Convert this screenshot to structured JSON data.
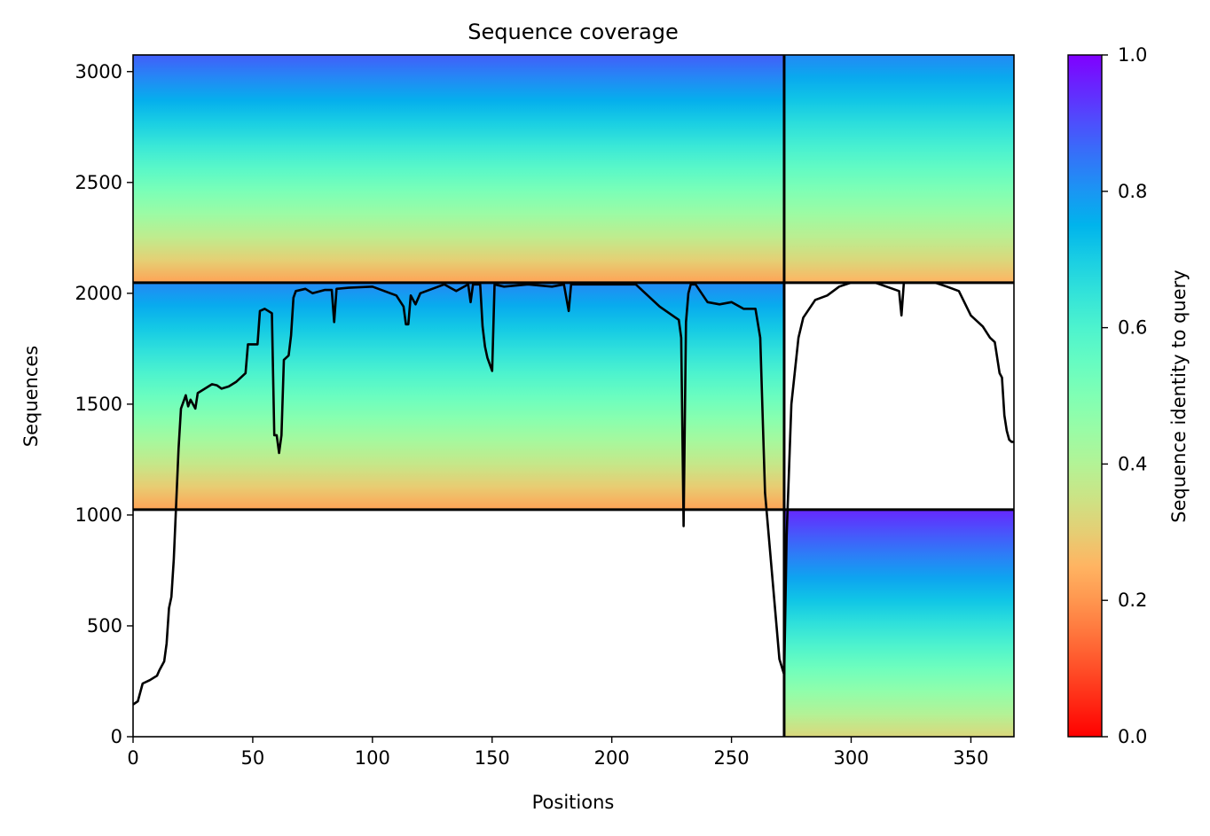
{
  "chart_data": {
    "type": "heatmap",
    "title": "Sequence coverage",
    "xlabel": "Positions",
    "ylabel": "Sequences",
    "xlim": [
      0,
      368
    ],
    "ylim": [
      0,
      3075
    ],
    "xticks": [
      0,
      50,
      100,
      150,
      200,
      250,
      300,
      350
    ],
    "yticks": [
      0,
      500,
      1000,
      1500,
      2000,
      2500,
      3000
    ],
    "colorbar": {
      "label": "Sequence identity to query",
      "colormap": "rainbow_r",
      "range": [
        0.0,
        1.0
      ],
      "ticks": [
        0.0,
        0.2,
        0.4,
        0.6,
        0.8,
        1.0
      ]
    },
    "separators": {
      "vertical_x": [
        272
      ],
      "horizontal_y": [
        1024,
        2048
      ]
    },
    "blocks": [
      {
        "x": [
          0,
          272
        ],
        "y": [
          2048,
          3075
        ],
        "identity_bottom": 0.22,
        "identity_top": 0.88
      },
      {
        "x": [
          0,
          272
        ],
        "y": [
          1024,
          2048
        ],
        "identity_bottom": 0.22,
        "identity_top": 0.82
      },
      {
        "x": [
          272,
          368
        ],
        "y": [
          2048,
          3075
        ],
        "identity_bottom": 0.25,
        "identity_top": 0.82
      },
      {
        "x": [
          272,
          368
        ],
        "y": [
          0,
          1024
        ],
        "identity_bottom": 0.32,
        "identity_top": 0.95
      }
    ],
    "coverage_line": {
      "x": [
        0,
        2,
        3,
        4,
        7,
        10,
        11,
        12,
        13,
        14,
        15,
        16,
        17,
        18,
        19,
        20,
        21,
        22,
        23,
        24,
        26,
        27,
        30,
        33,
        35,
        37,
        40,
        43,
        45,
        47,
        48,
        52,
        53,
        55,
        58,
        59,
        60,
        61,
        62,
        63,
        64,
        65,
        66,
        67,
        68,
        72,
        75,
        80,
        83,
        84,
        85,
        90,
        100,
        110,
        113,
        114,
        115,
        116,
        118,
        120,
        125,
        130,
        135,
        140,
        141,
        142,
        145,
        146,
        147,
        148,
        150,
        151,
        155,
        165,
        175,
        180,
        182,
        183,
        184,
        190,
        200,
        210,
        220,
        228,
        229,
        230,
        231,
        232,
        233,
        235,
        240,
        245,
        250,
        255,
        260,
        262,
        264,
        266,
        268,
        270,
        272,
        273,
        275,
        278,
        280,
        285,
        290,
        295,
        300,
        310,
        320,
        321,
        322,
        323,
        330,
        335,
        340,
        345,
        350,
        355,
        358,
        360,
        362,
        363,
        364,
        365,
        366,
        367,
        368
      ],
      "y": [
        145,
        160,
        200,
        240,
        255,
        275,
        300,
        320,
        340,
        420,
        580,
        630,
        800,
        1050,
        1300,
        1480,
        1510,
        1540,
        1490,
        1520,
        1480,
        1550,
        1570,
        1590,
        1585,
        1570,
        1580,
        1600,
        1620,
        1640,
        1770,
        1770,
        1920,
        1930,
        1910,
        1360,
        1360,
        1280,
        1360,
        1700,
        1710,
        1720,
        1810,
        1980,
        2010,
        2020,
        2000,
        2015,
        2015,
        1870,
        2020,
        2025,
        2030,
        1990,
        1940,
        1860,
        1860,
        1990,
        1950,
        2000,
        2020,
        2040,
        2010,
        2040,
        1960,
        2040,
        2040,
        1850,
        1760,
        1710,
        1650,
        2040,
        2030,
        2040,
        2030,
        2040,
        1920,
        2040,
        2040,
        2040,
        2040,
        2040,
        1940,
        1880,
        1800,
        950,
        1870,
        2000,
        2040,
        2040,
        1960,
        1950,
        1960,
        1930,
        1930,
        1800,
        1100,
        850,
        600,
        350,
        280,
        900,
        1500,
        1800,
        1890,
        1970,
        1990,
        2030,
        2048,
        2048,
        2010,
        1900,
        2048,
        2048,
        2048,
        2048,
        2030,
        2010,
        1900,
        1850,
        1800,
        1780,
        1640,
        1620,
        1450,
        1380,
        1340,
        1330,
        1330
      ]
    }
  }
}
